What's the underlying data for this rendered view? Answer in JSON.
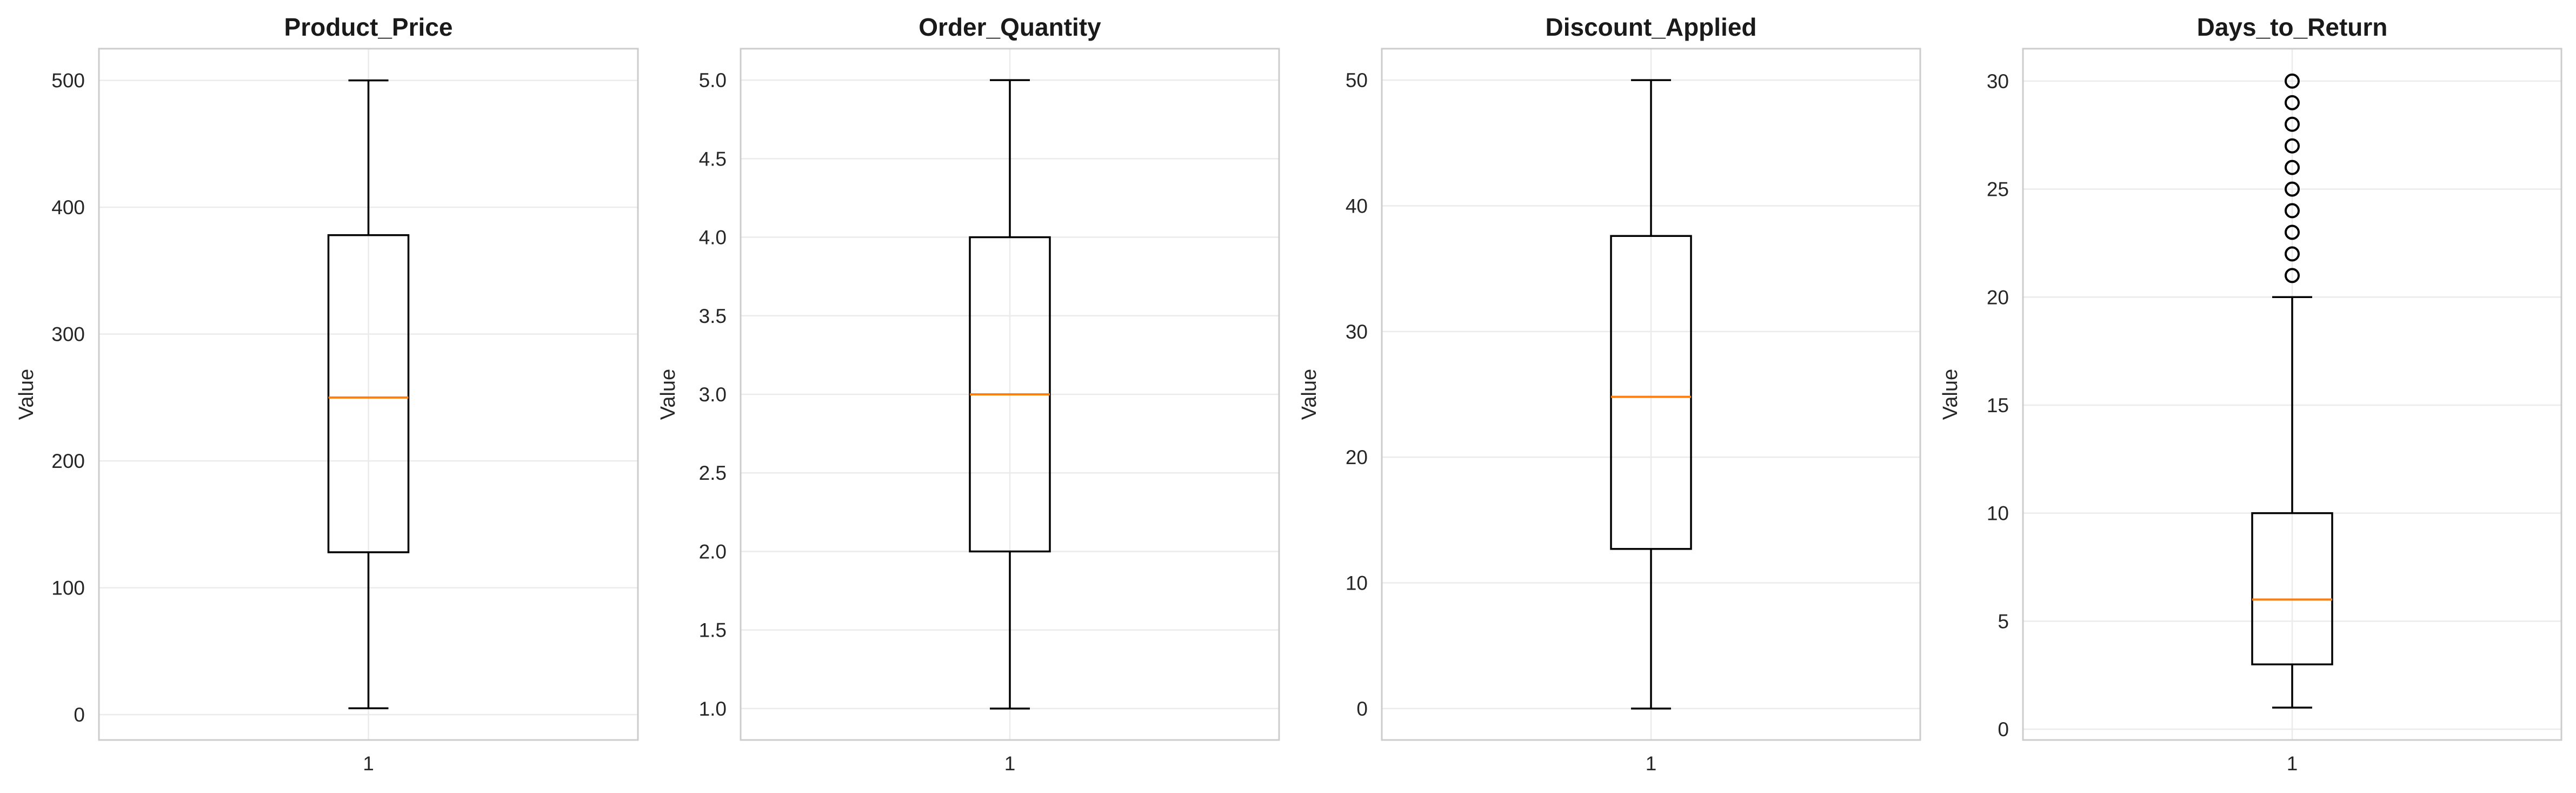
{
  "figure": {
    "background": "#ffffff",
    "panel_border_color": "#cccccc",
    "grid_color": "#ebebeb",
    "box_color": "#000000",
    "median_color": "#ff7f0e"
  },
  "chart_data": [
    {
      "type": "boxplot",
      "title": "Product_Price",
      "ylabel": "Value",
      "xticks": [
        "1"
      ],
      "ylim": [
        -20,
        525
      ],
      "yticks": [
        0,
        100,
        200,
        300,
        400,
        500
      ],
      "grid": true,
      "box": {
        "whisker_low": 5,
        "q1": 128,
        "median": 250,
        "q3": 378,
        "whisker_high": 500,
        "outliers": []
      }
    },
    {
      "type": "boxplot",
      "title": "Order_Quantity",
      "ylabel": "Value",
      "xticks": [
        "1"
      ],
      "ylim": [
        0.8,
        5.2
      ],
      "yticks": [
        1.0,
        1.5,
        2.0,
        2.5,
        3.0,
        3.5,
        4.0,
        4.5,
        5.0
      ],
      "grid": true,
      "box": {
        "whisker_low": 1,
        "q1": 2,
        "median": 3,
        "q3": 4,
        "whisker_high": 5,
        "outliers": []
      }
    },
    {
      "type": "boxplot",
      "title": "Discount_Applied",
      "ylabel": "Value",
      "xticks": [
        "1"
      ],
      "ylim": [
        -2.5,
        52.5
      ],
      "yticks": [
        0,
        10,
        20,
        30,
        40,
        50
      ],
      "grid": true,
      "box": {
        "whisker_low": 0,
        "q1": 12.7,
        "median": 24.8,
        "q3": 37.6,
        "whisker_high": 50,
        "outliers": []
      }
    },
    {
      "type": "boxplot",
      "title": "Days_to_Return",
      "ylabel": "Value",
      "xticks": [
        "1"
      ],
      "ylim": [
        -0.5,
        31.5
      ],
      "yticks": [
        0,
        5,
        10,
        15,
        20,
        25,
        30
      ],
      "grid": true,
      "box": {
        "whisker_low": 1,
        "q1": 3,
        "median": 6,
        "q3": 10,
        "whisker_high": 20,
        "outliers": [
          21,
          22,
          23,
          24,
          25,
          26,
          27,
          28,
          29,
          30
        ]
      }
    }
  ]
}
